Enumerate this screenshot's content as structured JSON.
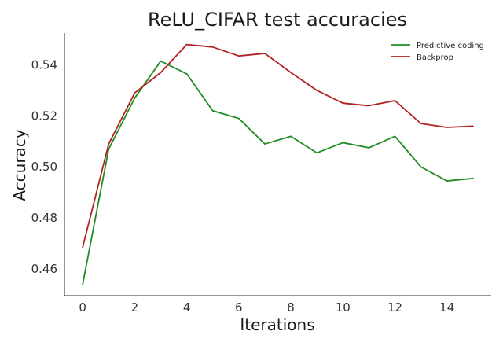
{
  "chart_data": {
    "type": "line",
    "title": "ReLU_CIFAR test accuracies",
    "xlabel": "Iterations",
    "ylabel": "Accuracy",
    "x": [
      0,
      1,
      2,
      3,
      4,
      5,
      6,
      7,
      8,
      9,
      10,
      11,
      12,
      13,
      14,
      15
    ],
    "xlim": [
      -0.7,
      15.7
    ],
    "ylim": [
      0.4495,
      0.5525
    ],
    "xticks": [
      0,
      2,
      4,
      6,
      8,
      10,
      12,
      14
    ],
    "xtick_labels": [
      "0",
      "2",
      "4",
      "6",
      "8",
      "10",
      "12",
      "14"
    ],
    "yticks": [
      0.46,
      0.48,
      0.5,
      0.52,
      0.54
    ],
    "ytick_labels": [
      "0.46",
      "0.48",
      "0.50",
      "0.52",
      "0.54"
    ],
    "grid": false,
    "legend_position": "top-right",
    "series": [
      {
        "name": "Predictive coding",
        "color": "#228b22",
        "values": [
          0.454,
          0.507,
          0.527,
          0.5415,
          0.5365,
          0.522,
          0.519,
          0.509,
          0.512,
          0.5055,
          0.5095,
          0.5075,
          0.512,
          0.5,
          0.4945,
          0.4955
        ]
      },
      {
        "name": "Backprop",
        "color": "#b22222",
        "values": [
          0.4685,
          0.509,
          0.529,
          0.537,
          0.548,
          0.547,
          0.5435,
          0.5445,
          0.537,
          0.53,
          0.525,
          0.524,
          0.526,
          0.517,
          0.5155,
          0.516
        ]
      }
    ]
  }
}
